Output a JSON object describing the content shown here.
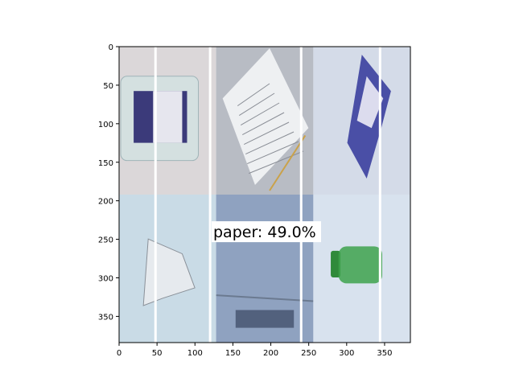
{
  "chart_data": {
    "type": "image",
    "xlim": [
      0,
      384
    ],
    "ylim": [
      384,
      0
    ],
    "y_inverted": true,
    "x_ticks": [
      0,
      50,
      100,
      150,
      200,
      250,
      300,
      350
    ],
    "y_ticks": [
      0,
      50,
      100,
      150,
      200,
      250,
      300,
      350
    ],
    "grid": false,
    "vertical_lines": [
      {
        "x": 48,
        "color": "#ffffff"
      },
      {
        "x": 120,
        "color": "#ffffff"
      },
      {
        "x": 240,
        "color": "#ffffff"
      },
      {
        "x": 344,
        "color": "#ffffff"
      }
    ],
    "tiles": [
      {
        "name": "plastic-bottle-label",
        "background": "#cfd9dc",
        "x": [
          0,
          128
        ],
        "y": [
          0,
          192
        ]
      },
      {
        "name": "paper-document",
        "background": "#c9ced6",
        "x": [
          128,
          256
        ],
        "y": [
          0,
          192
        ]
      },
      {
        "name": "crumpled-wrapper",
        "background": "#d4dbe8",
        "x": [
          256,
          384
        ],
        "y": [
          0,
          192
        ]
      },
      {
        "name": "crumpled-paper-ball",
        "background": "#c9dbe6",
        "x": [
          0,
          128
        ],
        "y": [
          192,
          384
        ]
      },
      {
        "name": "cardboard-box",
        "background": "#9aacc8",
        "x": [
          128,
          256
        ],
        "y": [
          192,
          384
        ]
      },
      {
        "name": "green-glass-bottle",
        "background": "#d8e2ee",
        "x": [
          256,
          384
        ],
        "y": [
          192,
          384
        ]
      }
    ],
    "annotation": {
      "text": "paper: 49.0%",
      "x": 122,
      "y": 189
    }
  },
  "colors": {
    "axis": "#000000",
    "annotation_bg": "#ffffff",
    "line": "#ffffff"
  }
}
